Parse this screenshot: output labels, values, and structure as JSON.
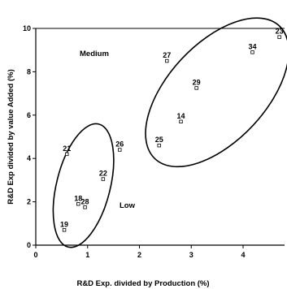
{
  "chart_data": {
    "type": "scatter",
    "xlabel": "R&D Exp. divided by Production (%)",
    "ylabel": "R&D Exp divided by value Added (%)",
    "xlim": [
      0,
      4.8
    ],
    "ylim": [
      0,
      10
    ],
    "x_ticks": [
      "0",
      "1",
      "2",
      "3",
      "4"
    ],
    "y_ticks": [
      "0",
      "2",
      "4",
      "6",
      "8",
      "10"
    ],
    "grid": false,
    "points": [
      {
        "label": "19",
        "x": 0.55,
        "y": 0.7
      },
      {
        "label": "18",
        "x": 0.82,
        "y": 1.9
      },
      {
        "label": "28",
        "x": 0.95,
        "y": 1.75
      },
      {
        "label": "21",
        "x": 0.6,
        "y": 4.2
      },
      {
        "label": "22",
        "x": 1.3,
        "y": 3.05
      },
      {
        "label": "26",
        "x": 1.62,
        "y": 4.4
      },
      {
        "label": "25",
        "x": 2.38,
        "y": 4.6
      },
      {
        "label": "14",
        "x": 2.8,
        "y": 5.7
      },
      {
        "label": "29",
        "x": 3.1,
        "y": 7.25
      },
      {
        "label": "27",
        "x": 2.53,
        "y": 8.5
      },
      {
        "label": "34",
        "x": 4.18,
        "y": 8.9
      },
      {
        "label": "23",
        "x": 4.7,
        "y": 9.6
      }
    ],
    "regions": [
      {
        "label": "Low"
      },
      {
        "label": "Medium"
      }
    ]
  }
}
